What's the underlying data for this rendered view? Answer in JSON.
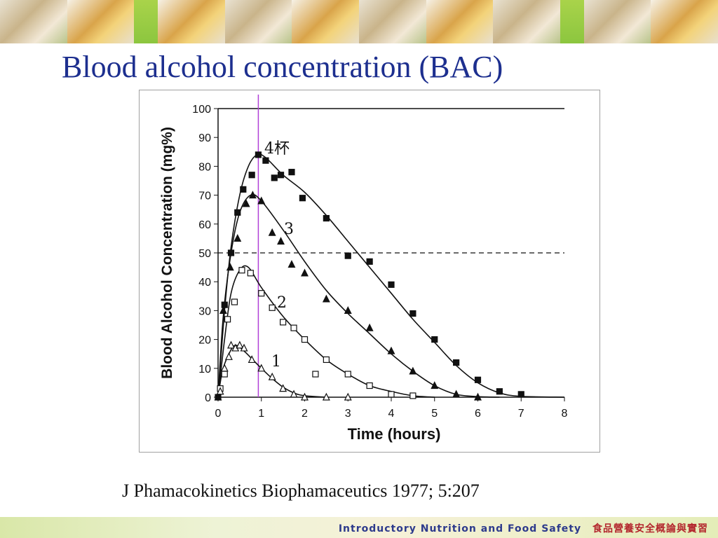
{
  "slide": {
    "title": "Blood alcohol concentration (BAC)",
    "citation": "J Phamacokinetics Biophamaceutics 1977; 5:207",
    "footer_brand": "Introductory Nutrition and Food Safety",
    "footer_subtitle": "食品營養安全概論與實習"
  },
  "chart_data": {
    "type": "scatter",
    "xlabel": "Time (hours)",
    "ylabel": "Blood Alcohol Concentration (mg%)",
    "xlim": [
      0,
      8
    ],
    "ylim": [
      0,
      100
    ],
    "x_ticks": [
      0,
      1,
      2,
      3,
      4,
      5,
      6,
      7,
      8
    ],
    "y_ticks": [
      0,
      10,
      20,
      30,
      40,
      50,
      60,
      70,
      80,
      90,
      100
    ],
    "grid": false,
    "reference_line_y": 50,
    "reference_line_x": 0.93,
    "series": [
      {
        "name": "4杯",
        "marker": "square-filled",
        "points": [
          [
            0.0,
            0
          ],
          [
            0.15,
            32
          ],
          [
            0.3,
            50
          ],
          [
            0.45,
            64
          ],
          [
            0.58,
            72
          ],
          [
            0.78,
            77
          ],
          [
            0.93,
            84
          ],
          [
            1.1,
            82
          ],
          [
            1.3,
            76
          ],
          [
            1.45,
            77
          ],
          [
            1.7,
            78
          ],
          [
            1.95,
            69
          ],
          [
            2.5,
            62
          ],
          [
            3.0,
            49
          ],
          [
            3.5,
            47
          ],
          [
            4.0,
            39
          ],
          [
            4.5,
            29
          ],
          [
            5.0,
            20
          ],
          [
            5.5,
            12
          ],
          [
            6.0,
            6
          ],
          [
            6.5,
            2
          ],
          [
            7.0,
            1
          ]
        ],
        "curve": [
          [
            0,
            0
          ],
          [
            0.15,
            30
          ],
          [
            0.3,
            52
          ],
          [
            0.5,
            70
          ],
          [
            0.7,
            80
          ],
          [
            0.9,
            84
          ],
          [
            1.1,
            83
          ],
          [
            1.5,
            77
          ],
          [
            2.0,
            71
          ],
          [
            2.5,
            63
          ],
          [
            3.0,
            54
          ],
          [
            3.5,
            45
          ],
          [
            4.0,
            36
          ],
          [
            4.5,
            27
          ],
          [
            5.0,
            19
          ],
          [
            5.5,
            11
          ],
          [
            6.0,
            5
          ],
          [
            6.5,
            1.5
          ],
          [
            7.0,
            0.3
          ],
          [
            8.0,
            0
          ]
        ]
      },
      {
        "name": "3",
        "marker": "triangle-filled",
        "points": [
          [
            0.0,
            0
          ],
          [
            0.12,
            30
          ],
          [
            0.28,
            45
          ],
          [
            0.45,
            55
          ],
          [
            0.65,
            67
          ],
          [
            0.8,
            70
          ],
          [
            1.0,
            68
          ],
          [
            1.25,
            57
          ],
          [
            1.45,
            54
          ],
          [
            1.7,
            46
          ],
          [
            2.0,
            43
          ],
          [
            2.5,
            34
          ],
          [
            3.0,
            30
          ],
          [
            3.5,
            24
          ],
          [
            4.0,
            16
          ],
          [
            4.5,
            9
          ],
          [
            5.0,
            4
          ],
          [
            5.5,
            1
          ],
          [
            6.0,
            0
          ]
        ],
        "curve": [
          [
            0,
            0
          ],
          [
            0.12,
            28
          ],
          [
            0.3,
            50
          ],
          [
            0.5,
            64
          ],
          [
            0.75,
            70
          ],
          [
            1.0,
            68
          ],
          [
            1.5,
            58
          ],
          [
            2.0,
            47
          ],
          [
            2.5,
            37
          ],
          [
            3.0,
            29
          ],
          [
            3.5,
            22
          ],
          [
            4.0,
            15
          ],
          [
            4.5,
            9
          ],
          [
            5.0,
            4
          ],
          [
            5.5,
            1
          ],
          [
            6.0,
            0.2
          ],
          [
            6.5,
            0
          ]
        ]
      },
      {
        "name": "2",
        "marker": "square-open",
        "points": [
          [
            0.05,
            3
          ],
          [
            0.15,
            8
          ],
          [
            0.22,
            27
          ],
          [
            0.38,
            33
          ],
          [
            0.55,
            44
          ],
          [
            0.75,
            43
          ],
          [
            1.0,
            36
          ],
          [
            1.25,
            31
          ],
          [
            1.5,
            26
          ],
          [
            1.75,
            24
          ],
          [
            2.0,
            20
          ],
          [
            2.25,
            8
          ],
          [
            2.5,
            13
          ],
          [
            3.0,
            8
          ],
          [
            3.5,
            4
          ],
          [
            4.0,
            1
          ],
          [
            4.5,
            0.5
          ]
        ],
        "curve": [
          [
            0,
            0
          ],
          [
            0.15,
            20
          ],
          [
            0.3,
            36
          ],
          [
            0.5,
            44
          ],
          [
            0.7,
            45
          ],
          [
            1.0,
            38
          ],
          [
            1.5,
            28
          ],
          [
            2.0,
            20
          ],
          [
            2.5,
            13
          ],
          [
            3.0,
            8
          ],
          [
            3.5,
            4
          ],
          [
            4.0,
            2
          ],
          [
            4.5,
            0.5
          ],
          [
            5.0,
            0
          ]
        ]
      },
      {
        "name": "1",
        "marker": "triangle-open",
        "points": [
          [
            0.05,
            2
          ],
          [
            0.15,
            10
          ],
          [
            0.25,
            14
          ],
          [
            0.3,
            18
          ],
          [
            0.4,
            17
          ],
          [
            0.5,
            18
          ],
          [
            0.6,
            17
          ],
          [
            0.78,
            13
          ],
          [
            1.0,
            10
          ],
          [
            1.25,
            7
          ],
          [
            1.5,
            3
          ],
          [
            1.75,
            1
          ],
          [
            2.0,
            0
          ],
          [
            2.5,
            0
          ],
          [
            3.0,
            0
          ]
        ],
        "curve": [
          [
            0,
            0
          ],
          [
            0.1,
            9
          ],
          [
            0.25,
            15
          ],
          [
            0.4,
            18
          ],
          [
            0.6,
            16
          ],
          [
            0.8,
            13
          ],
          [
            1.0,
            10
          ],
          [
            1.25,
            6.5
          ],
          [
            1.5,
            3.5
          ],
          [
            1.75,
            1.5
          ],
          [
            2.0,
            0.5
          ],
          [
            2.5,
            0
          ]
        ]
      }
    ]
  }
}
